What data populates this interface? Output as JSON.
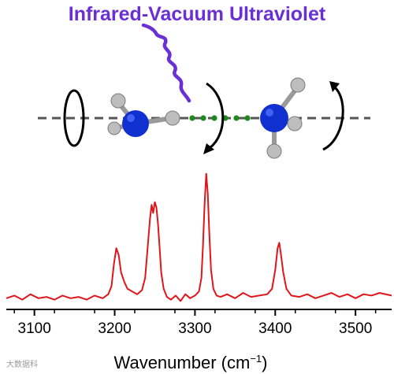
{
  "figure": {
    "title": "Infrared-Vacuum Ultraviolet",
    "watermark": "大数据科",
    "colors": {
      "title": "#6b2fd6",
      "spectrum": "#e0161b",
      "nitrogen": "#1030d0",
      "hydrogen": "#bdbdbd",
      "bond": "#1e8a1e",
      "axis": "#000000"
    },
    "molecules": [
      "nh3-left",
      "nh3-right"
    ]
  },
  "chart_data": {
    "type": "line",
    "xlabel": "Wavenumber",
    "xlabel_unit_open": "(cm",
    "xlabel_unit_sup": "−1",
    "xlabel_unit_close": ")",
    "xlim": [
      3065,
      3545
    ],
    "ylim": [
      0,
      1
    ],
    "x_ticks": [
      3100,
      3200,
      3300,
      3400,
      3500
    ],
    "x_tick_labels": [
      "3100",
      "3200",
      "3300",
      "3400",
      "3500"
    ],
    "series": [
      {
        "x": [
          3065,
          3075,
          3085,
          3095,
          3105,
          3115,
          3125,
          3135,
          3145,
          3155,
          3165,
          3175,
          3185,
          3192,
          3196,
          3199,
          3202,
          3205,
          3208,
          3212,
          3216,
          3222,
          3228,
          3234,
          3238,
          3241,
          3244,
          3246,
          3248,
          3250,
          3252,
          3254,
          3256,
          3258,
          3261,
          3265,
          3270,
          3276,
          3282,
          3288,
          3294,
          3300,
          3305,
          3308,
          3310,
          3312,
          3314,
          3316,
          3318,
          3320,
          3323,
          3327,
          3332,
          3340,
          3350,
          3360,
          3370,
          3380,
          3390,
          3396,
          3400,
          3403,
          3405,
          3407,
          3410,
          3414,
          3420,
          3430,
          3440,
          3450,
          3460,
          3470,
          3480,
          3490,
          3500,
          3510,
          3520,
          3530,
          3545
        ],
        "y": [
          0.03,
          0.05,
          0.02,
          0.06,
          0.03,
          0.04,
          0.02,
          0.05,
          0.03,
          0.04,
          0.02,
          0.05,
          0.03,
          0.06,
          0.12,
          0.28,
          0.4,
          0.35,
          0.22,
          0.15,
          0.1,
          0.08,
          0.06,
          0.09,
          0.18,
          0.4,
          0.62,
          0.72,
          0.66,
          0.74,
          0.7,
          0.58,
          0.4,
          0.22,
          0.1,
          0.04,
          0.02,
          0.05,
          0.01,
          0.06,
          0.03,
          0.05,
          0.08,
          0.18,
          0.42,
          0.72,
          0.95,
          0.8,
          0.5,
          0.24,
          0.1,
          0.05,
          0.04,
          0.06,
          0.03,
          0.07,
          0.04,
          0.05,
          0.06,
          0.1,
          0.24,
          0.4,
          0.44,
          0.36,
          0.22,
          0.1,
          0.05,
          0.04,
          0.06,
          0.03,
          0.05,
          0.07,
          0.04,
          0.06,
          0.03,
          0.06,
          0.05,
          0.07,
          0.05
        ]
      }
    ],
    "grid": false
  }
}
